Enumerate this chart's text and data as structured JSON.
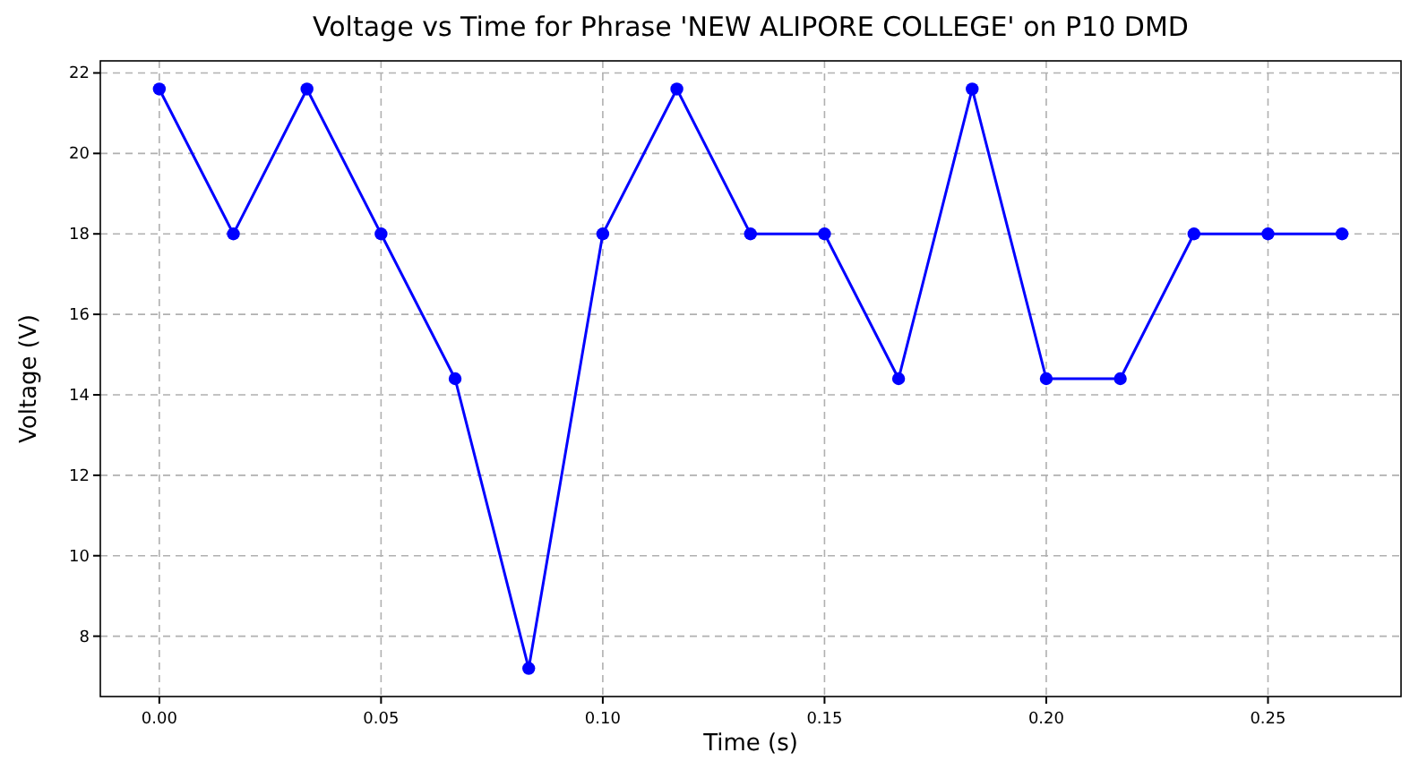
{
  "chart_data": {
    "type": "line",
    "title": "Voltage vs Time for Phrase 'NEW ALIPORE COLLEGE' on P10 DMD",
    "xlabel": "Time (s)",
    "ylabel": "Voltage (V)",
    "x": [
      0,
      0.0167,
      0.0333,
      0.05,
      0.0667,
      0.0833,
      0.1,
      0.1167,
      0.1333,
      0.15,
      0.1667,
      0.1833,
      0.2,
      0.2167,
      0.2333,
      0.25,
      0.2667
    ],
    "series": [
      {
        "color": "#0000ff",
        "values": [
          21.6,
          18,
          21.6,
          18,
          14.4,
          7.2,
          18,
          21.6,
          18,
          18,
          14.4,
          21.6,
          14.4,
          14.4,
          18,
          18,
          18
        ]
      }
    ],
    "xlim": [
      -0.0133,
      0.28
    ],
    "ylim": [
      6.5,
      22.3
    ],
    "xticks": [
      {
        "value": 0,
        "label": "0.00"
      },
      {
        "value": 0.05,
        "label": "0.05"
      },
      {
        "value": 0.1,
        "label": "0.10"
      },
      {
        "value": 0.15,
        "label": "0.15"
      },
      {
        "value": 0.2,
        "label": "0.20"
      },
      {
        "value": 0.25,
        "label": "0.25"
      }
    ],
    "yticks": [
      8,
      10,
      12,
      14,
      16,
      18,
      20,
      22
    ],
    "grid": true,
    "marker": "circle",
    "line_style": "solid"
  }
}
